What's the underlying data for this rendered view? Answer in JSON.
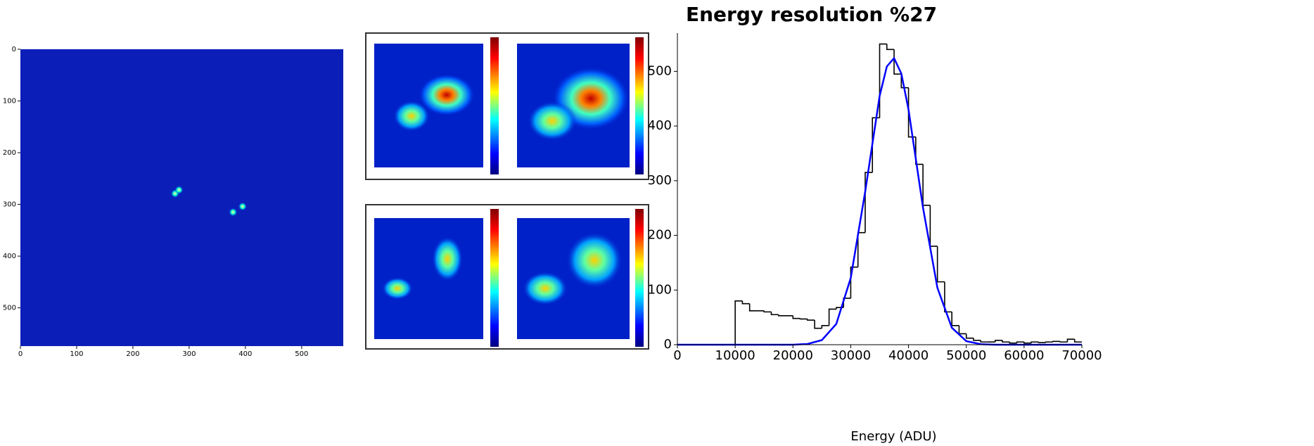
{
  "chart_data": [
    {
      "type": "image",
      "x": [
        275,
        282,
        378,
        395
      ],
      "y": [
        279,
        272,
        315,
        304
      ],
      "color": "#00ffcc",
      "xlim": [
        0,
        574
      ],
      "ylim": [
        574,
        0
      ],
      "xticks": [
        0,
        100,
        200,
        300,
        400,
        500
      ],
      "yticks": [
        0,
        100,
        200,
        300,
        400,
        500
      ]
    },
    {
      "type": "histogram",
      "title": "Energy resolution %27",
      "xlabel": "Energy (ADU)",
      "bins": [
        0,
        1250,
        2500,
        3750,
        5000,
        6250,
        7500,
        8750,
        10000,
        11250,
        12500,
        13750,
        15000,
        16250,
        17500,
        18750,
        20000,
        21250,
        22500,
        23750,
        25000,
        26250,
        27500,
        28750,
        30000,
        31250,
        32500,
        33750,
        35000,
        36250,
        37500,
        38750,
        40000,
        41250,
        42500,
        43750,
        45000,
        46250,
        47500,
        48750,
        50000,
        51250,
        52500,
        53750,
        55000,
        56250,
        57500,
        58750,
        60000,
        61250,
        62500,
        63750,
        65000,
        66250,
        67500,
        68750,
        70000
      ],
      "values": [
        0,
        0,
        0,
        0,
        0,
        0,
        0,
        0,
        80,
        75,
        62,
        62,
        60,
        55,
        53,
        53,
        48,
        47,
        45,
        30,
        35,
        65,
        68,
        85,
        142,
        205,
        315,
        415,
        550,
        540,
        495,
        470,
        380,
        330,
        255,
        180,
        115,
        60,
        35,
        20,
        12,
        8,
        5,
        5,
        8,
        5,
        3,
        5,
        3,
        5,
        4,
        5,
        6,
        5,
        10,
        5
      ],
      "color": "#000000",
      "fit": {
        "x": [
          0,
          20000,
          22500,
          25000,
          27500,
          30000,
          32500,
          35000,
          36250,
          37500,
          38750,
          40000,
          42500,
          45000,
          47500,
          50000,
          52500,
          55000,
          70000
        ],
        "values": [
          0,
          0,
          1.3,
          8.4,
          38,
          122,
          280,
          455,
          509,
          524,
          496,
          430,
          251,
          104,
          31,
          6.5,
          1,
          0,
          0
        ],
        "color": "#0000ff"
      },
      "xlim": [
        0,
        70000
      ],
      "ylim": [
        0,
        570
      ],
      "xticks": [
        0,
        10000,
        20000,
        30000,
        40000,
        50000,
        60000,
        70000
      ],
      "yticks": [
        0,
        100,
        200,
        300,
        400,
        500
      ]
    }
  ]
}
